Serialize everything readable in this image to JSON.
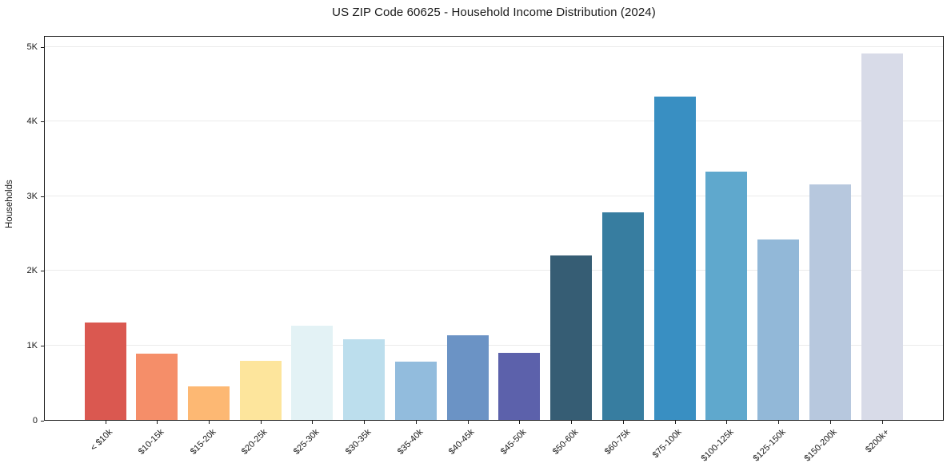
{
  "figure": {
    "title": "US ZIP Code 60625 - Household Income Distribution (2024)"
  },
  "chart_data": {
    "type": "bar",
    "title": "US ZIP Code 60625 - Household Income Distribution (2024)",
    "xlabel": "",
    "ylabel": "Households",
    "categories": [
      "< $10k",
      "$10-15k",
      "$15-20k",
      "$20-25k",
      "$25-30k",
      "$30-35k",
      "$35-40k",
      "$40-45k",
      "$45-50k",
      "$50-60k",
      "$60-75k",
      "$75-100k",
      "$100-125k",
      "$125-150k",
      "$150-200k",
      "$200k+"
    ],
    "values": [
      1300,
      885,
      450,
      790,
      1260,
      1080,
      780,
      1130,
      900,
      2200,
      2780,
      4325,
      3320,
      2420,
      3150,
      4900
    ],
    "bar_colors": [
      "#da5850",
      "#f58e69",
      "#fdb873",
      "#fde59c",
      "#e3f2f5",
      "#bcdeed",
      "#92bcdd",
      "#6b93c5",
      "#5c61ab",
      "#365d74",
      "#377da0",
      "#398fc2",
      "#5fa8cd",
      "#92b8d8",
      "#b7c8de",
      "#d8dbe8"
    ],
    "ylim": [
      0,
      5150
    ],
    "yticks": [
      0,
      1000,
      2000,
      3000,
      4000,
      5000
    ],
    "ytick_labels": [
      "0",
      "1K",
      "2K",
      "3K",
      "4K",
      "5K"
    ],
    "grid": "horizontal",
    "gridline_color": "#ebebeb",
    "legend": "none",
    "xtick_rotation_deg": 45
  }
}
